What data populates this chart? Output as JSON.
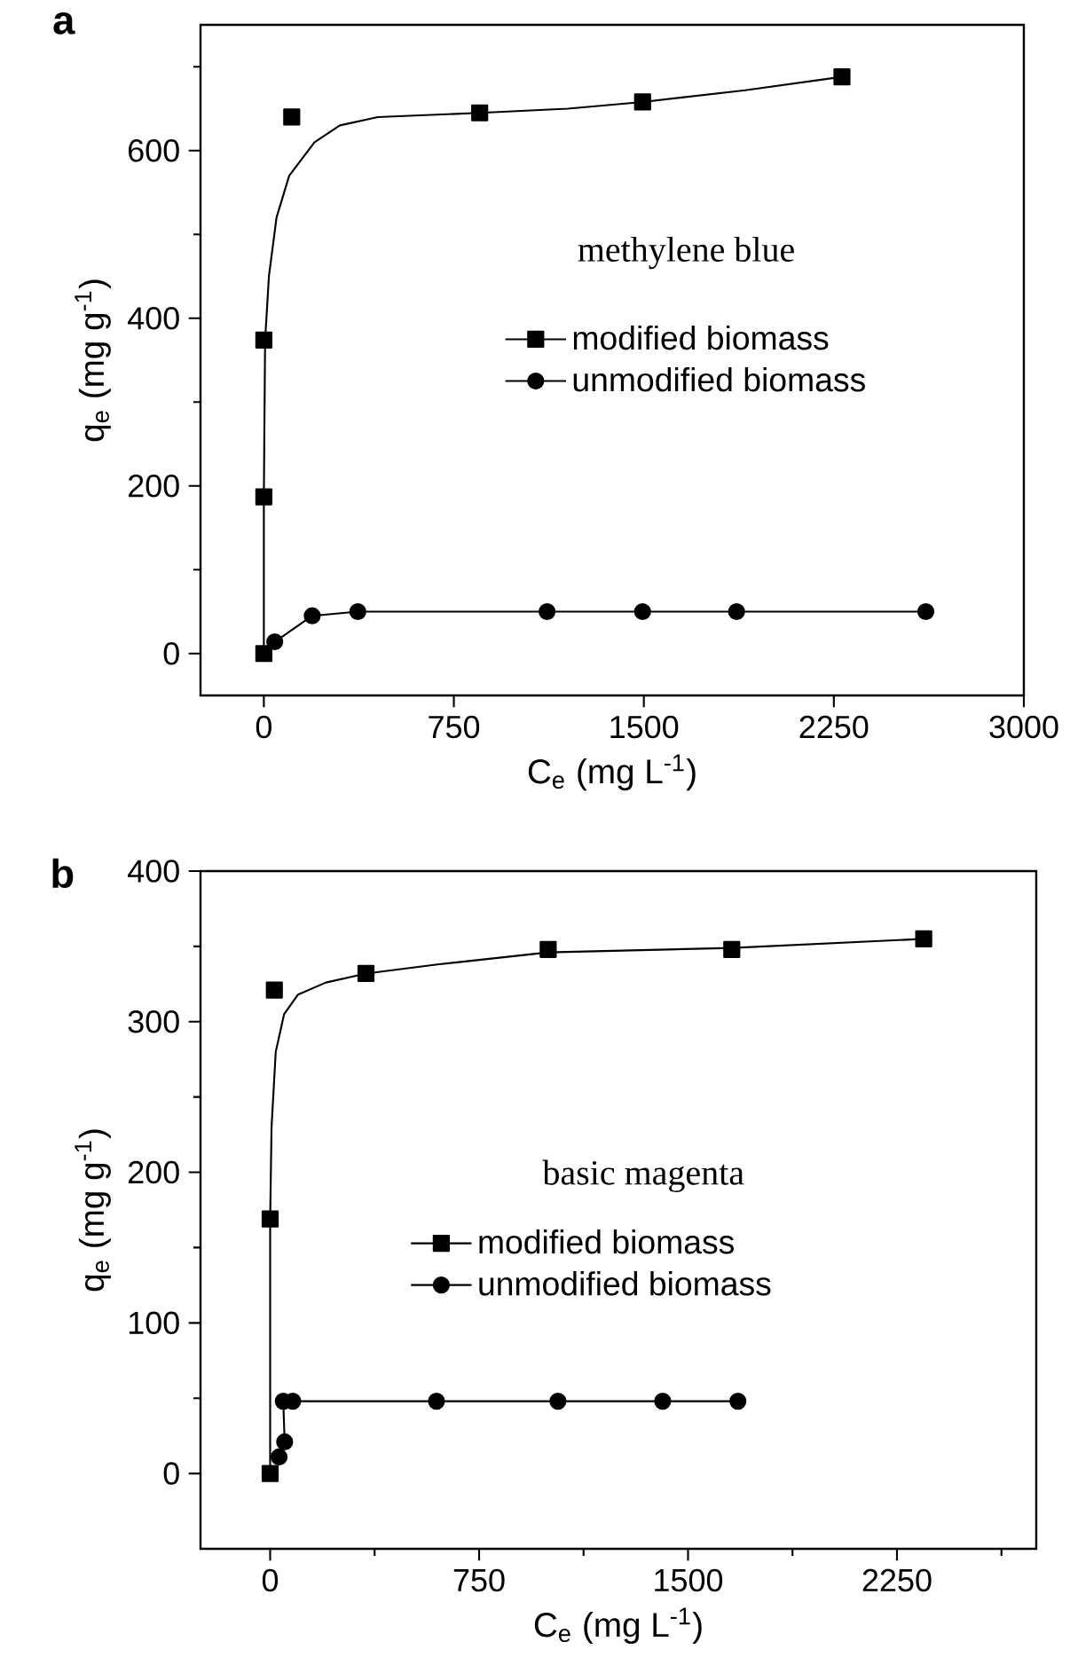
{
  "chart_data": [
    {
      "type": "line",
      "title": "a",
      "xlabel": "C$_{e}$ (mg L$^{-1}$)",
      "ylabel": "q$_{e}$ (mg g$^{-1}$)",
      "annotations": [
        "methylene blue"
      ],
      "legend": "center right",
      "xlim": [
        -250,
        3000
      ],
      "ylim": [
        -50,
        750
      ],
      "xticks": [
        0,
        750,
        1500,
        2250,
        3000
      ],
      "yticks": [
        0,
        {
          "value": 100,
          "label": null
        },
        200,
        {
          "value": 300,
          "label": null
        },
        400,
        {
          "value": 500,
          "label": null
        },
        600,
        {
          "value": 700,
          "label": null
        }
      ],
      "series": [
        {
          "name": "modified biomass",
          "type": "scatter",
          "marker": "square",
          "color": "#000000",
          "x": [
            0,
            0,
            0,
            110,
            852,
            1495,
            2282
          ],
          "values": [
            0,
            187,
            374,
            640,
            645,
            658,
            688
          ]
        },
        {
          "marker": "none",
          "color": "#000000",
          "x": [
            0,
            0,
            5,
            20,
            50,
            100,
            200,
            300,
            450,
            852,
            1200,
            1495,
            1900,
            2282
          ],
          "values": [
            0,
            187,
            374,
            450,
            520,
            570,
            610,
            630,
            640,
            645,
            650,
            658,
            672,
            688
          ]
        },
        {
          "name": "unmodified biomass",
          "marker": "circle",
          "color": "#000000",
          "x": [
            43,
            191,
            371,
            1118,
            1495,
            1866,
            2613
          ],
          "values": [
            14,
            45,
            50,
            50,
            50,
            50,
            50
          ]
        }
      ]
    },
    {
      "type": "line",
      "title": "b",
      "xlabel": "C$_{e}$ (mg L$^{-1}$)",
      "ylabel": "q$_{e}$ (mg g$^{-1}$)",
      "annotations": [
        "basic magenta"
      ],
      "legend": "center",
      "xlim": [
        -250,
        2750
      ],
      "ylim": [
        -50,
        400
      ],
      "xticks": [
        0,
        {
          "value": 375,
          "label": null
        },
        750,
        {
          "value": 1125,
          "label": null
        },
        1500,
        {
          "value": 1875,
          "label": null
        },
        2250,
        {
          "value": 2625,
          "label": null
        }
      ],
      "yticks": [
        0,
        {
          "value": 50,
          "label": null
        },
        100,
        {
          "value": 150,
          "label": null
        },
        200,
        {
          "value": 250,
          "label": null
        },
        300,
        {
          "value": 350,
          "label": null
        },
        400
      ],
      "series": [
        {
          "name": "modified biomass",
          "type": "scatter",
          "marker": "square",
          "color": "#000000",
          "x": [
            0,
            0,
            15,
            344,
            998,
            1657,
            2346
          ],
          "values": [
            0,
            169,
            321,
            332,
            348,
            348,
            355
          ]
        },
        {
          "marker": "none",
          "color": "#000000",
          "x": [
            0,
            0,
            5,
            20,
            50,
            100,
            200,
            344,
            600,
            998,
            1657,
            2346
          ],
          "values": [
            0,
            169,
            230,
            280,
            305,
            318,
            326,
            332,
            338,
            346,
            349,
            355
          ]
        },
        {
          "name": "unmodified biomass",
          "marker": "circle",
          "color": "#000000",
          "x": [
            32,
            52,
            47,
            81,
            597,
            1033,
            1409,
            1679
          ],
          "values": [
            11,
            21,
            48,
            48,
            48,
            48,
            48,
            48
          ]
        }
      ]
    }
  ]
}
